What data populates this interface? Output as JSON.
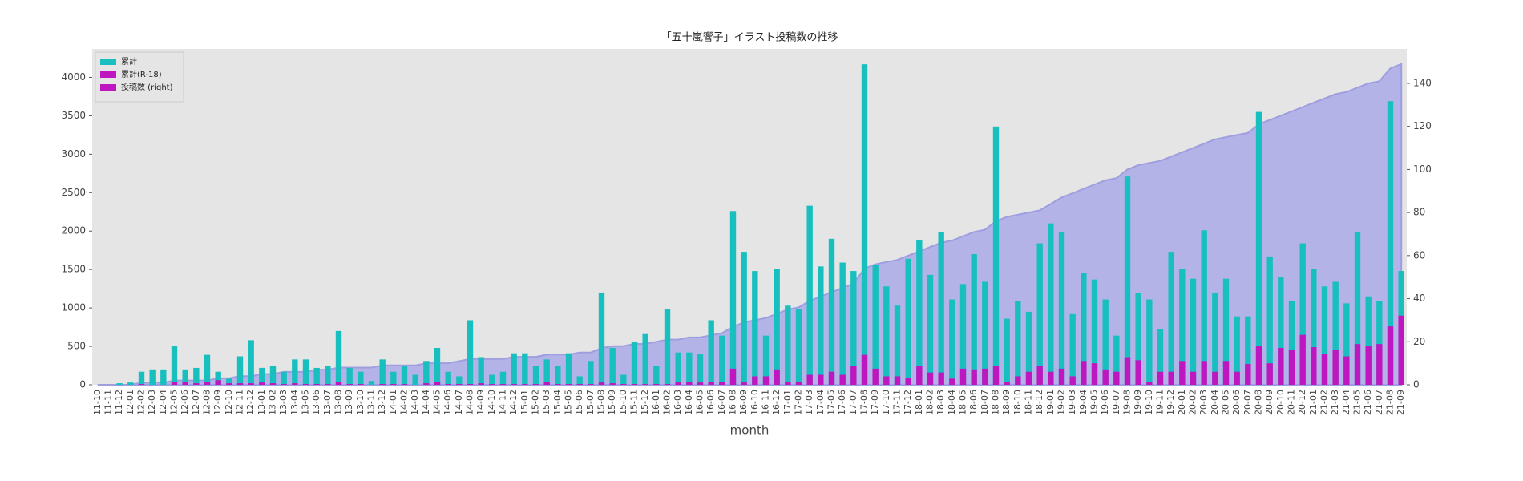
{
  "chart_data": {
    "type": "bar",
    "title": "「五十嵐響子」イラスト投稿数の推移",
    "x_label": "month",
    "categories": [
      "11-10",
      "11-11",
      "11-12",
      "12-01",
      "12-02",
      "12-03",
      "12-04",
      "12-05",
      "12-06",
      "12-07",
      "12-08",
      "12-09",
      "12-10",
      "12-11",
      "12-12",
      "13-01",
      "13-02",
      "13-03",
      "13-04",
      "13-05",
      "13-06",
      "13-07",
      "13-08",
      "13-09",
      "13-10",
      "13-11",
      "13-12",
      "14-01",
      "14-02",
      "14-03",
      "14-04",
      "14-05",
      "14-06",
      "14-07",
      "14-08",
      "14-09",
      "14-10",
      "14-11",
      "14-12",
      "15-01",
      "15-02",
      "15-03",
      "15-04",
      "15-05",
      "15-06",
      "15-07",
      "15-08",
      "15-09",
      "15-10",
      "15-11",
      "15-12",
      "16-01",
      "16-02",
      "16-03",
      "16-04",
      "16-05",
      "16-06",
      "16-07",
      "16-08",
      "16-09",
      "16-10",
      "16-11",
      "16-12",
      "17-01",
      "17-02",
      "17-03",
      "17-04",
      "17-05",
      "17-06",
      "17-07",
      "17-08",
      "17-09",
      "17-10",
      "17-11",
      "17-12",
      "18-01",
      "18-02",
      "18-03",
      "18-04",
      "18-05",
      "18-06",
      "18-07",
      "18-08",
      "18-09",
      "18-10",
      "18-11",
      "18-12",
      "19-01",
      "19-02",
      "19-03",
      "19-04",
      "19-05",
      "19-06",
      "19-07",
      "19-08",
      "19-09",
      "19-10",
      "19-11",
      "19-12",
      "20-01",
      "20-02",
      "20-03",
      "20-04",
      "20-05",
      "20-06",
      "20-07",
      "20-08",
      "20-09",
      "20-10",
      "20-11",
      "20-12",
      "21-01",
      "21-02",
      "21-03",
      "21-04",
      "21-05",
      "21-06",
      "21-07",
      "21-08",
      "21-09"
    ],
    "series": [
      {
        "name": "累計",
        "color": "#17bfbf",
        "kind": "bar",
        "values": [
          0,
          0,
          20,
          30,
          170,
          200,
          200,
          500,
          200,
          220,
          390,
          170,
          80,
          370,
          580,
          220,
          250,
          170,
          330,
          330,
          220,
          250,
          700,
          220,
          170,
          50,
          330,
          170,
          250,
          130,
          310,
          480,
          170,
          110,
          840,
          360,
          130,
          170,
          410,
          410,
          250,
          330,
          250,
          410,
          110,
          310,
          1200,
          480,
          130,
          560,
          660,
          250,
          980,
          420,
          420,
          400,
          840,
          640,
          2260,
          1730,
          1480,
          640,
          1510,
          1030,
          980,
          2330,
          1540,
          1900,
          1590,
          1480,
          4170,
          1560,
          1280,
          1030,
          1640,
          1880,
          1430,
          1990,
          1110,
          1310,
          1700,
          1340,
          3360,
          860,
          1090,
          950,
          1840,
          2100,
          1990,
          920,
          1460,
          1370,
          1110,
          640,
          2710,
          1190,
          1110,
          730,
          1730,
          1510,
          1380,
          2010,
          1200,
          1380,
          890,
          890,
          3550,
          1670,
          1400,
          1090,
          1840,
          1510,
          1280,
          1340,
          1060,
          1990,
          1150,
          1090,
          3690,
          1480
        ]
      },
      {
        "name": "累計(R-18)",
        "color": "#bf17bf",
        "kind": "bar",
        "values": [
          0,
          0,
          0,
          0,
          10,
          0,
          0,
          40,
          40,
          20,
          40,
          60,
          20,
          20,
          20,
          30,
          20,
          10,
          20,
          10,
          10,
          10,
          40,
          10,
          10,
          0,
          10,
          10,
          10,
          0,
          20,
          40,
          10,
          10,
          10,
          20,
          10,
          10,
          10,
          10,
          10,
          40,
          10,
          10,
          10,
          10,
          30,
          20,
          10,
          10,
          10,
          10,
          10,
          30,
          40,
          30,
          40,
          40,
          210,
          30,
          110,
          110,
          200,
          40,
          40,
          130,
          130,
          170,
          130,
          250,
          390,
          210,
          110,
          110,
          90,
          250,
          160,
          160,
          80,
          210,
          200,
          210,
          250,
          40,
          110,
          170,
          250,
          170,
          210,
          110,
          310,
          280,
          200,
          170,
          360,
          320,
          40,
          170,
          170,
          310,
          170,
          310,
          170,
          310,
          170,
          270,
          500,
          280,
          480,
          450,
          650,
          490,
          400,
          450,
          370,
          530,
          500,
          530,
          760,
          900
        ]
      },
      {
        "name": "投稿数 (right)",
        "color": "#b3b3e8",
        "stroke": "#9e9ee0",
        "legend_color": "#bf17bf",
        "kind": "area",
        "axis": "y2",
        "values": [
          0,
          0,
          0,
          0,
          1,
          1,
          1,
          2,
          2,
          2,
          2,
          3,
          3,
          4,
          4,
          5,
          5,
          6,
          6,
          6,
          7,
          7,
          8,
          8,
          8,
          8,
          9,
          9,
          9,
          9,
          10,
          10,
          10,
          11,
          12,
          12,
          12,
          12,
          13,
          13,
          13,
          14,
          14,
          14,
          15,
          15,
          17,
          18,
          18,
          19,
          19,
          20,
          21,
          21,
          22,
          22,
          23,
          24,
          27,
          29,
          30,
          31,
          33,
          35,
          36,
          39,
          41,
          43,
          45,
          47,
          54,
          56,
          57,
          58,
          60,
          62,
          64,
          66,
          67,
          69,
          71,
          72,
          76,
          78,
          79,
          80,
          81,
          84,
          87,
          89,
          91,
          93,
          95,
          96,
          100,
          102,
          103,
          104,
          106,
          108,
          110,
          112,
          114,
          115,
          116,
          117,
          121,
          123,
          125,
          127,
          129,
          131,
          133,
          135,
          136,
          138,
          140,
          141,
          147,
          149
        ]
      }
    ],
    "ylim": [
      0,
      4370
    ],
    "yticks": [
      0,
      500,
      1000,
      1500,
      2000,
      2500,
      3000,
      3500,
      4000
    ],
    "y2lim": [
      0,
      156
    ],
    "y2ticks": [
      0,
      20,
      40,
      60,
      80,
      100,
      120,
      140
    ],
    "grid": false,
    "legend": "upper left"
  }
}
